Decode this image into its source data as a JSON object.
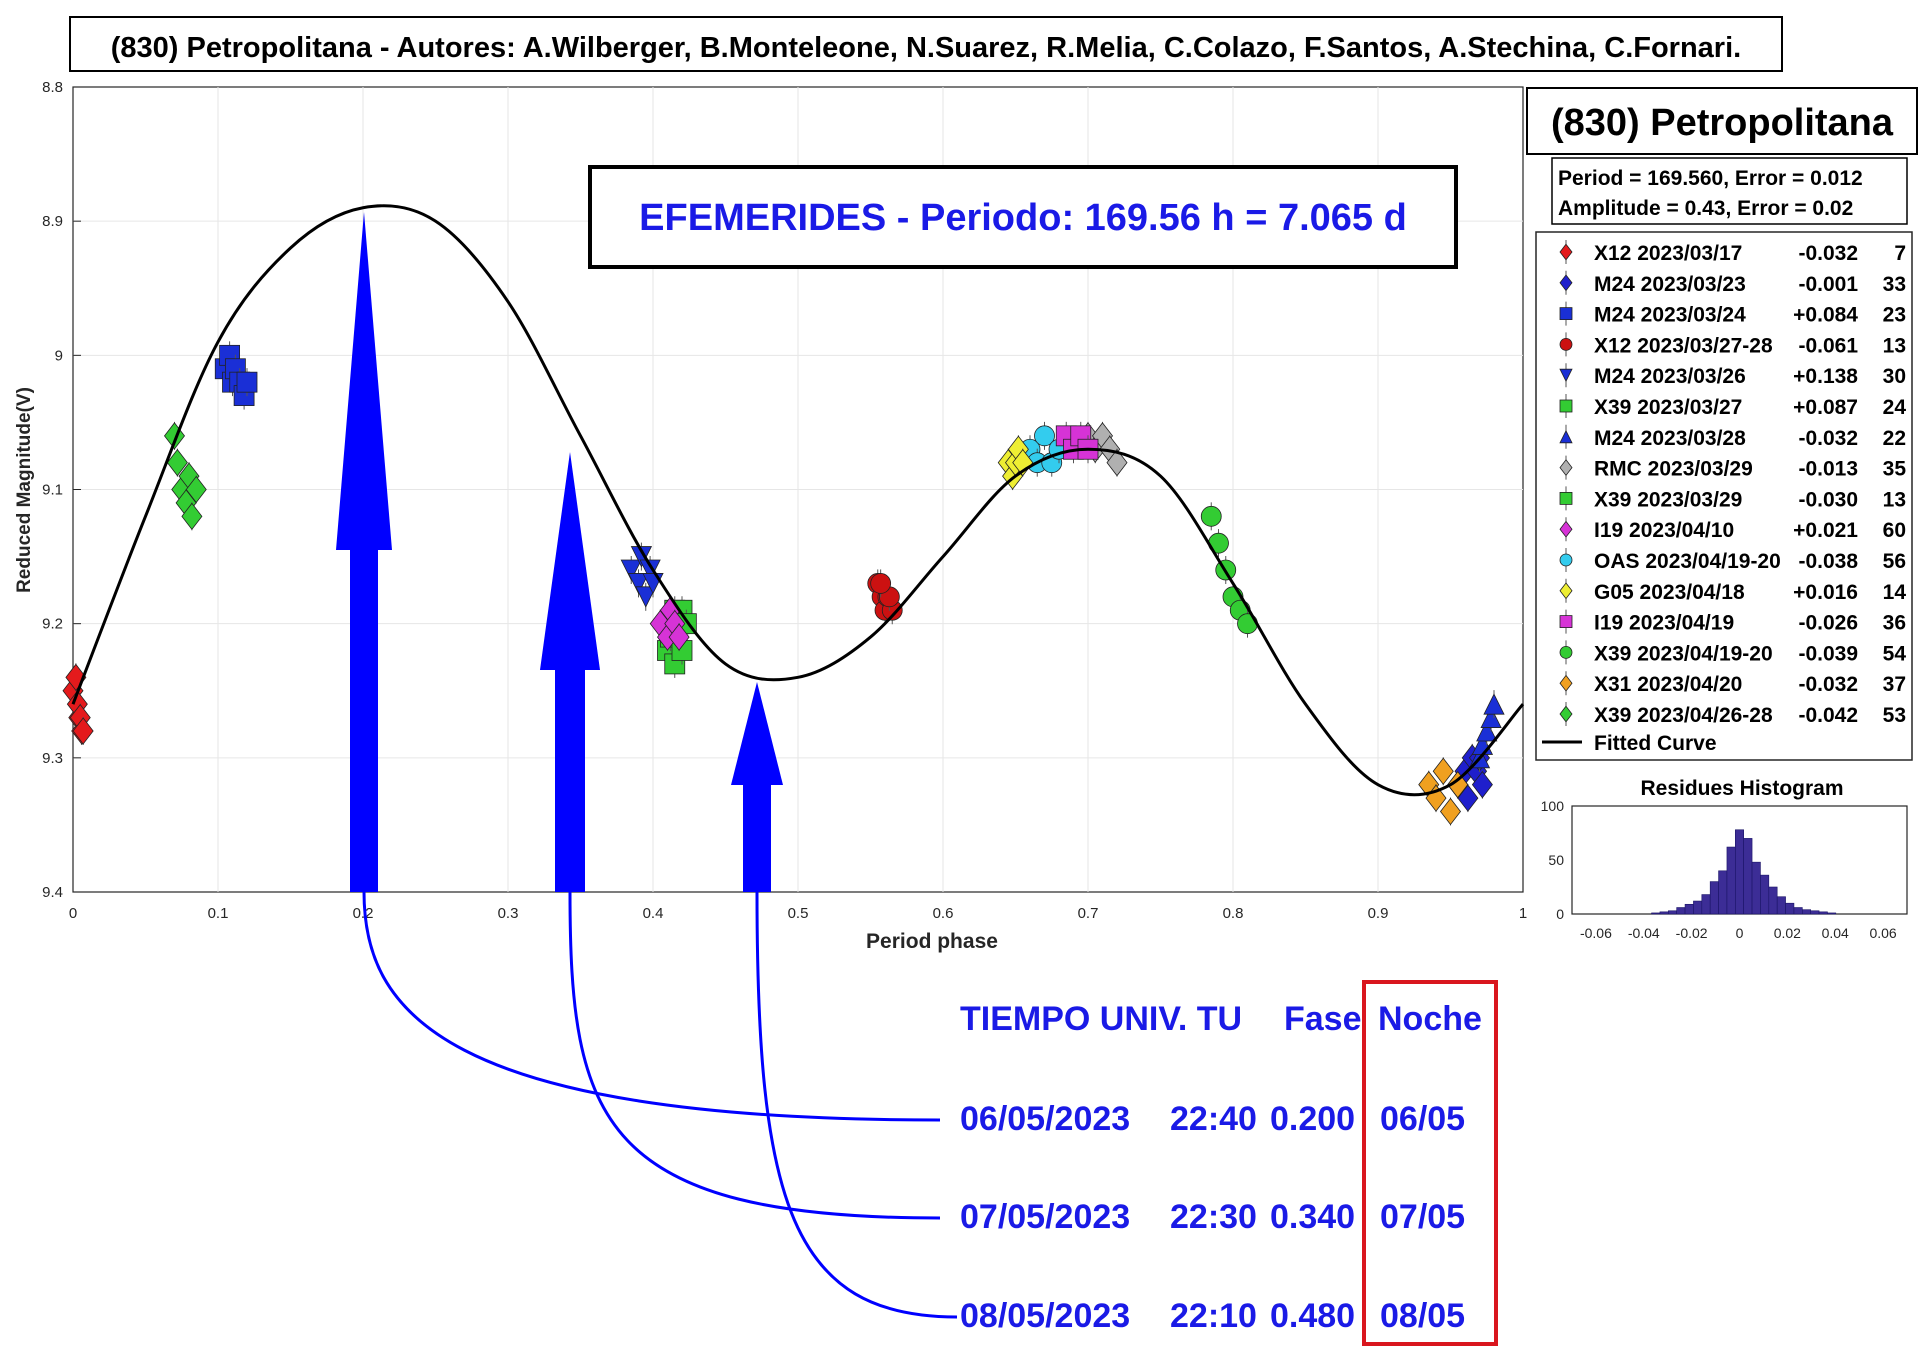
{
  "header": {
    "title": "(830) Petropolitana - Autores: A.Wilberger, B.Monteleone, N.Suarez, R.Melia, C.Colazo, F.Santos, A.Stechina, C.Fornari."
  },
  "ephemeris_title": "EFEMERIDES - Periodo: 169.56 h = 7.065 d",
  "side_panel": {
    "name": "(830) Petropolitana",
    "period_line": "Period =  169.560, Error = 0.012",
    "amplitude_line": "Amplitude = 0.43, Error = 0.02"
  },
  "table": {
    "headers": {
      "time": "TIEMPO UNIV. TU",
      "phase": "Fase",
      "night": "Noche"
    },
    "rows": [
      {
        "date": "06/05/2023",
        "time": "22:40",
        "phase": "0.200",
        "night": "06/05"
      },
      {
        "date": "07/05/2023",
        "time": "22:30",
        "phase": "0.340",
        "night": "07/05"
      },
      {
        "date": "08/05/2023",
        "time": "22:10",
        "phase": "0.480",
        "night": "08/05"
      }
    ]
  },
  "colors": {
    "arrow": "#0000ff",
    "table_text": "#1a1ae6",
    "night_box": "#d9161e",
    "curve": "#000000",
    "histogram": "#3c2d96"
  },
  "chart_data": [
    {
      "type": "scatter",
      "xlabel": "Period phase",
      "ylabel": "Reduced Magnitude(V)",
      "xlim": [
        0,
        1
      ],
      "ylim": [
        8.8,
        9.4
      ],
      "y_inverted": true,
      "x_ticks": [
        "0",
        "0.1",
        "0.2",
        "0.3",
        "0.4",
        "0.5",
        "0.6",
        "0.7",
        "0.8",
        "0.9",
        "1"
      ],
      "y_ticks": [
        "8.8",
        "8.9",
        "9",
        "9.1",
        "9.2",
        "9.3",
        "9.4"
      ],
      "grid": true,
      "legend_position": "right",
      "fitted_curve_label": "Fitted Curve",
      "fitted_curve": {
        "x": [
          0,
          0.05,
          0.1,
          0.15,
          0.2,
          0.25,
          0.3,
          0.35,
          0.4,
          0.45,
          0.5,
          0.55,
          0.6,
          0.65,
          0.7,
          0.75,
          0.8,
          0.85,
          0.9,
          0.95,
          1.0
        ],
        "y": [
          9.26,
          9.12,
          8.99,
          8.92,
          8.89,
          8.9,
          8.96,
          9.06,
          9.16,
          9.23,
          9.24,
          9.21,
          9.15,
          9.09,
          9.07,
          9.09,
          9.17,
          9.26,
          9.32,
          9.32,
          9.26
        ]
      },
      "series": [
        {
          "name": "X12 2023/03/17",
          "offset": "-0.032",
          "count": "7",
          "color": "#e41a1c",
          "marker": "diamond",
          "x": [
            0.0,
            0.002,
            0.004,
            0.006,
            0.003,
            0.005,
            0.007
          ],
          "y": [
            9.25,
            9.24,
            9.27,
            9.28,
            9.26,
            9.27,
            9.28
          ]
        },
        {
          "name": "M24 2023/03/23",
          "offset": "-0.001",
          "count": "33",
          "color": "#1f1fcc",
          "marker": "diamond",
          "x": [
            0.955,
            0.96,
            0.962,
            0.965,
            0.968,
            0.97,
            0.972
          ],
          "y": [
            9.32,
            9.31,
            9.33,
            9.3,
            9.31,
            9.3,
            9.32
          ]
        },
        {
          "name": "M24 2023/03/24",
          "offset": "+0.084",
          "count": "23",
          "color": "#1a2fd6",
          "marker": "square",
          "x": [
            0.105,
            0.108,
            0.11,
            0.112,
            0.115,
            0.118,
            0.12
          ],
          "y": [
            9.01,
            9.0,
            9.02,
            9.01,
            9.02,
            9.03,
            9.02
          ]
        },
        {
          "name": "X12 2023/03/27-28",
          "offset": "-0.061",
          "count": "13",
          "color": "#cc1111",
          "marker": "circle",
          "x": [
            0.555,
            0.558,
            0.56,
            0.562,
            0.565,
            0.563,
            0.557
          ],
          "y": [
            9.17,
            9.18,
            9.19,
            9.18,
            9.19,
            9.18,
            9.17
          ]
        },
        {
          "name": "M24 2023/03/26",
          "offset": "+0.138",
          "count": "30",
          "color": "#1a2fd6",
          "marker": "triangle-down",
          "x": [
            0.385,
            0.39,
            0.392,
            0.395,
            0.398,
            0.4
          ],
          "y": [
            9.16,
            9.17,
            9.15,
            9.18,
            9.16,
            9.17
          ]
        },
        {
          "name": "X39 2023/03/27",
          "offset": "+0.087",
          "count": "24",
          "color": "#33cc33",
          "marker": "square",
          "x": [
            0.41,
            0.412,
            0.415,
            0.418,
            0.42
          ],
          "y": [
            9.22,
            9.21,
            9.23,
            9.2,
            9.22
          ]
        },
        {
          "name": "M24 2023/03/28",
          "offset": "-0.032",
          "count": "22",
          "color": "#1a2fd6",
          "marker": "triangle-up",
          "x": [
            0.97,
            0.972,
            0.975,
            0.978,
            0.98
          ],
          "y": [
            9.3,
            9.29,
            9.28,
            9.27,
            9.26
          ]
        },
        {
          "name": "RMC 2023/03/29",
          "offset": "-0.013",
          "count": "35",
          "color": "#b0b0b0",
          "marker": "diamond",
          "x": [
            0.7,
            0.705,
            0.71,
            0.715,
            0.72
          ],
          "y": [
            9.06,
            9.07,
            9.06,
            9.07,
            9.08
          ]
        },
        {
          "name": "X39 2023/03/29",
          "offset": "-0.030",
          "count": "13",
          "color": "#33cc33",
          "marker": "square",
          "x": [
            0.415,
            0.418,
            0.42,
            0.423
          ],
          "y": [
            9.19,
            9.2,
            9.19,
            9.2
          ]
        },
        {
          "name": "I19 2023/04/10",
          "offset": "+0.021",
          "count": "60",
          "color": "#d633d6",
          "marker": "diamond",
          "x": [
            0.405,
            0.41,
            0.412,
            0.415,
            0.418
          ],
          "y": [
            9.2,
            9.21,
            9.19,
            9.2,
            9.21
          ]
        },
        {
          "name": "OAS 2023/04/19-20",
          "offset": "-0.038",
          "count": "56",
          "color": "#33ccee",
          "marker": "circle",
          "x": [
            0.66,
            0.665,
            0.67,
            0.675,
            0.68
          ],
          "y": [
            9.07,
            9.08,
            9.06,
            9.08,
            9.07
          ]
        },
        {
          "name": "G05 2023/04/18",
          "offset": "+0.016",
          "count": "14",
          "color": "#eeee33",
          "marker": "diamond",
          "x": [
            0.645,
            0.648,
            0.65,
            0.652,
            0.655
          ],
          "y": [
            9.08,
            9.09,
            9.08,
            9.07,
            9.08
          ]
        },
        {
          "name": "I19 2023/04/19",
          "offset": "-0.026",
          "count": "36",
          "color": "#d633d6",
          "marker": "square",
          "x": [
            0.685,
            0.69,
            0.695,
            0.7
          ],
          "y": [
            9.06,
            9.07,
            9.06,
            9.07
          ]
        },
        {
          "name": "X39 2023/04/19-20",
          "offset": "-0.039",
          "count": "54",
          "color": "#33cc33",
          "marker": "circle",
          "x": [
            0.785,
            0.79,
            0.795,
            0.8,
            0.805,
            0.81
          ],
          "y": [
            9.12,
            9.14,
            9.16,
            9.18,
            9.19,
            9.2
          ]
        },
        {
          "name": "X31 2023/04/20",
          "offset": "-0.032",
          "count": "37",
          "color": "#f0a020",
          "marker": "diamond",
          "x": [
            0.935,
            0.94,
            0.945,
            0.95,
            0.955
          ],
          "y": [
            9.32,
            9.33,
            9.31,
            9.34,
            9.32
          ]
        },
        {
          "name": "X39 2023/04/26-28",
          "offset": "-0.042",
          "count": "53",
          "color": "#33cc33",
          "marker": "diamond",
          "x": [
            0.07,
            0.072,
            0.075,
            0.078,
            0.08,
            0.082,
            0.085
          ],
          "y": [
            9.06,
            9.08,
            9.1,
            9.11,
            9.09,
            9.12,
            9.1
          ]
        }
      ]
    },
    {
      "type": "bar",
      "title": "Residues Histogram",
      "x_ticks": [
        "-0.06",
        "-0.04",
        "-0.02",
        "0",
        "0.02",
        "0.04",
        "0.06"
      ],
      "y_ticks": [
        "0",
        "50",
        "100"
      ],
      "xlim": [
        -0.07,
        0.07
      ],
      "ylim": [
        0,
        100
      ],
      "bin_width": 0.0035,
      "bins": [
        -0.035,
        -0.0315,
        -0.028,
        -0.0245,
        -0.021,
        -0.0175,
        -0.014,
        -0.0105,
        -0.007,
        -0.0035,
        0,
        0.0035,
        0.007,
        0.0105,
        0.014,
        0.0175,
        0.021,
        0.0245,
        0.028,
        0.0315,
        0.035,
        0.0385
      ],
      "counts": [
        1,
        2,
        3,
        6,
        9,
        12,
        18,
        30,
        40,
        62,
        78,
        70,
        48,
        36,
        25,
        16,
        10,
        6,
        4,
        3,
        2,
        1
      ]
    }
  ]
}
